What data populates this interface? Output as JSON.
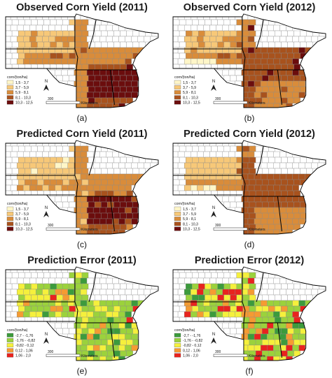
{
  "panels": [
    {
      "title": "Observed Corn Yield (2011)",
      "caption": "(a)",
      "legend_kind": "yield",
      "pattern": "obs2011"
    },
    {
      "title": "Observed Corn Yield (2012)",
      "caption": "(b)",
      "legend_kind": "yield",
      "pattern": "obs2012"
    },
    {
      "title": "Predicted Corn Yield (2011)",
      "caption": "(c)",
      "legend_kind": "yield",
      "pattern": "pred2011"
    },
    {
      "title": "Predicted Corn Yield (2012)",
      "caption": "(d)",
      "legend_kind": "yield",
      "pattern": "pred2012"
    },
    {
      "title": "Prediction Error (2011)",
      "caption": "(e)",
      "legend_kind": "error",
      "pattern": "err2011"
    },
    {
      "title": "Prediction Error (2012)",
      "caption": "(f)",
      "legend_kind": "error",
      "pattern": "err2012"
    }
  ],
  "legends": {
    "yield": {
      "title": "corn/(ton/ha)",
      "classes": [
        "1,5 - 3,7",
        "3,7 - 5,9",
        "5,9 - 8,1",
        "8,1 - 10,3",
        "10,3 - 12,5"
      ],
      "colors": [
        "#fff6c8",
        "#f7c878",
        "#d98c3a",
        "#a8521d",
        "#6b0d0d"
      ]
    },
    "error": {
      "title": "corn/(ton/ha)",
      "classes": [
        "-2,7 - -1,76",
        "-1,76 - -0,82",
        "-0,82 - 0,12",
        "0,12 - 1,06",
        "1,06 - 2,0"
      ],
      "colors": [
        "#3c9b3c",
        "#9bd23c",
        "#f5f03c",
        "#f59b32",
        "#e8231e"
      ]
    }
  },
  "north_label": "N",
  "scale": {
    "value": "300",
    "unit": "Kilometers"
  },
  "colors": {
    "no_data": "#ffffff",
    "county_border": "#8a8a8a",
    "state_border": "#000000"
  }
}
